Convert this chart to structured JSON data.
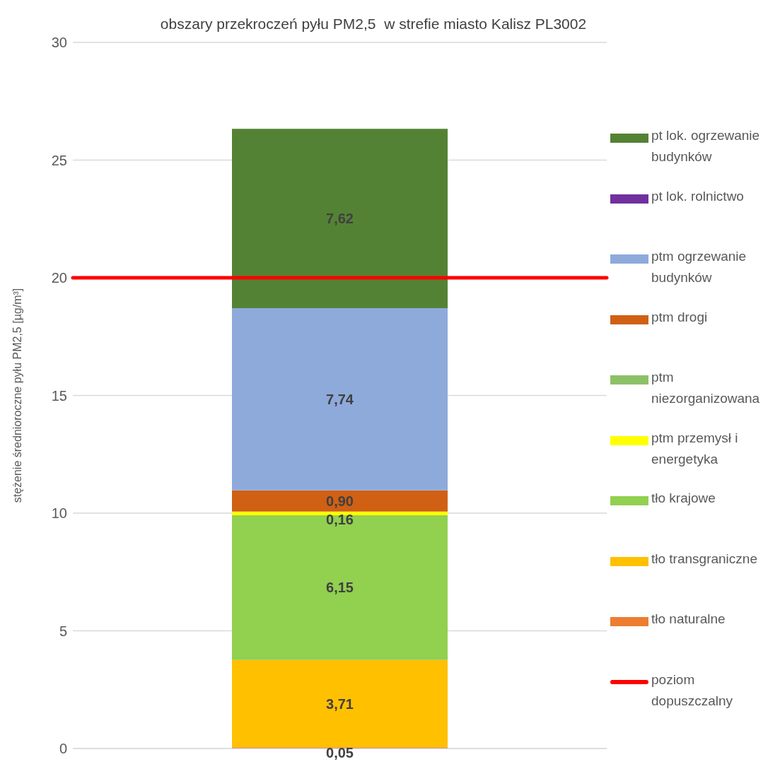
{
  "chart_data": {
    "type": "bar",
    "title": "obszary przekroczeń pyłu PM2,5  w strefie miasto Kalisz PL3002",
    "ylabel": "stężenie średnioroczne pyłu PM2,5 [µg/m³]",
    "categories": [
      null
    ],
    "stacked": true,
    "series": [
      {
        "name": "tło naturalne",
        "color": "#ed7d31",
        "values": [
          0.05
        ],
        "value_labels": [
          "0,05"
        ]
      },
      {
        "name": "tło transgraniczne",
        "color": "#ffc000",
        "values": [
          3.71
        ],
        "value_labels": [
          "3,71"
        ]
      },
      {
        "name": "tło krajowe",
        "color": "#92d050",
        "values": [
          6.15
        ],
        "value_labels": [
          "6,15"
        ]
      },
      {
        "name": "ptm przemysł i energetyka",
        "color": "#ffff00",
        "values": [
          0.16
        ],
        "value_labels": [
          "0,16"
        ]
      },
      {
        "name": "ptm niezorganizowana",
        "color": "#8cc168",
        "values": [
          0
        ],
        "value_labels": [
          null
        ]
      },
      {
        "name": "ptm drogi",
        "color": "#d06014",
        "values": [
          0.9
        ],
        "value_labels": [
          "0,90"
        ]
      },
      {
        "name": "ptm ogrzewanie budynków",
        "color": "#8eaadb",
        "values": [
          7.74
        ],
        "value_labels": [
          "7,74"
        ]
      },
      {
        "name": "pt lok. rolnictwo",
        "color": "#7030a0",
        "values": [
          0
        ],
        "value_labels": [
          null
        ]
      },
      {
        "name": "pt lok. ogrzewanie budynków",
        "color": "#548235",
        "values": [
          7.62
        ],
        "value_labels": [
          "7,62"
        ]
      }
    ],
    "ref_lines": [
      {
        "axis": "y",
        "value": 20,
        "label": "poziom dopuszczalny",
        "color": "#ff0000"
      }
    ],
    "ylim": [
      0,
      30
    ],
    "yticks": [
      0,
      5,
      10,
      15,
      20,
      25,
      30
    ],
    "grid": "y",
    "legend": "right"
  }
}
